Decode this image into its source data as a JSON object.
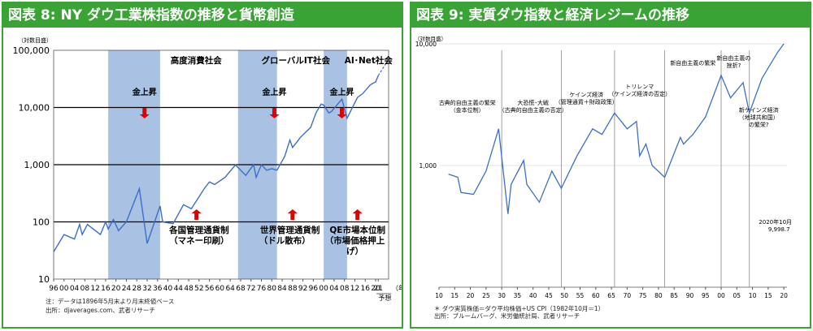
{
  "left": {
    "title": "図表 8: NY ダウ工業株指数の推移と貨幣創造",
    "note1": "注：データは1896年5月末より月末終値ベース",
    "note2": "出所：djaverages.com、武者リサーチ",
    "forecast_label": "予想",
    "colors": {
      "header": "#3aa335",
      "line": "#3b6fc4",
      "band": "#a9c2e3",
      "arrow": "#e00000"
    },
    "chart_data": {
      "type": "line",
      "yscale": "log",
      "ylabel": "（対数目盛）",
      "xlabel": "（年）",
      "ylim": [
        10,
        100000
      ],
      "xlim": [
        1896,
        2025
      ],
      "yticks": [
        "10",
        "100",
        "1,000",
        "10,000",
        "100,000"
      ],
      "xticks": [
        "96",
        "00",
        "04",
        "08",
        "12",
        "16",
        "20",
        "24",
        "28",
        "32",
        "36",
        "40",
        "44",
        "48",
        "52",
        "56",
        "60",
        "64",
        "68",
        "72",
        "76",
        "80",
        "84",
        "88",
        "92",
        "96",
        "00",
        "04",
        "08",
        "12",
        "16",
        "20",
        "21"
      ],
      "bands": [
        [
          1917,
          1937
        ],
        [
          1967,
          1982
        ],
        [
          2000,
          2009
        ]
      ],
      "eras": [
        "高度消費社会",
        "グローバルIT社会",
        "AI･Net社会"
      ],
      "gold": [
        "金上昇",
        "金上昇",
        "金上昇"
      ],
      "money": [
        "各国管理通貨制",
        "（マネー印刷）",
        "世界管理通貨制",
        "（ドル散布）",
        "QE市場本位制",
        "（市場価格押上",
        "げ）"
      ],
      "series": [
        {
          "x": [
            1896,
            1900,
            1904,
            1906,
            1907,
            1909,
            1914,
            1916,
            1917,
            1919,
            1921,
            1924,
            1929,
            1932,
            1937,
            1938,
            1942,
            1946,
            1949,
            1954,
            1956,
            1958,
            1962,
            1966,
            1970,
            1973,
            1974,
            1976,
            1978,
            1980,
            1982,
            1985,
            1987,
            1988,
            1990,
            1991,
            1995,
            1997,
            1999,
            2000,
            2002,
            2003,
            2007,
            2009,
            2013,
            2015,
            2018,
            2020,
            2021
          ],
          "y": [
            30,
            60,
            50,
            90,
            60,
            90,
            60,
            100,
            75,
            110,
            70,
            100,
            380,
            42,
            190,
            100,
            93,
            200,
            170,
            380,
            500,
            450,
            600,
            990,
            650,
            1000,
            600,
            1000,
            800,
            850,
            800,
            1400,
            2700,
            2000,
            2600,
            3000,
            4500,
            8000,
            11500,
            11000,
            8000,
            8500,
            14000,
            6500,
            15000,
            17500,
            25000,
            28000,
            36000
          ]
        }
      ]
    }
  },
  "right": {
    "title": "図表 9: 実質ダウ指数と経済レジームの推移",
    "note1": "＊ ダウ実質株価＝ダウ平均株価÷US CPI（1982年10月＝1）",
    "note2": "出所：ブルームバーグ、米労働統計局、武者リサーチ",
    "colors": {
      "line": "#3b6fc4",
      "divider": "#888888"
    },
    "chart_data": {
      "type": "line",
      "yscale": "log",
      "ylabel": "（対数目盛）",
      "ylim": [
        100,
        10000
      ],
      "xlim": [
        1910,
        2021
      ],
      "yticks": [
        "1,000",
        "10,000"
      ],
      "xticks": [
        "10",
        "15",
        "20",
        "25",
        "30",
        "35",
        "40",
        "45",
        "50",
        "55",
        "60",
        "65",
        "70",
        "75",
        "80",
        "85",
        "90",
        "95",
        "00",
        "05",
        "10",
        "15",
        "20"
      ],
      "regimes": [
        {
          "lines": [
            "古典的自由主義の繁栄",
            "（金本位制）"
          ]
        },
        {
          "lines": [
            "大恐慌･大戦",
            "（古典的自由主義の否定）"
          ]
        },
        {
          "lines": [
            "ケインズ経済",
            "（管理通貨＋財政政策）"
          ]
        },
        {
          "lines": [
            "トリレンマ",
            "（ケインズ経済の否定）"
          ]
        },
        {
          "lines": [
            "新自由主義の繁栄"
          ]
        },
        {
          "lines": [
            "新自由主義の",
            "挫折?"
          ]
        },
        {
          "lines": [
            "新ケインズ経済",
            "（地球共和国）",
            "の繁栄?"
          ]
        }
      ],
      "dividers": [
        1930,
        1949,
        1966,
        1982,
        2000,
        2009
      ],
      "latest": {
        "label": "2020年10月",
        "value": "9,998.7"
      },
      "series": [
        {
          "x": [
            1913,
            1916,
            1917,
            1921,
            1925,
            1929,
            1932,
            1933,
            1937,
            1938,
            1942,
            1946,
            1949,
            1954,
            1959,
            1962,
            1966,
            1970,
            1973,
            1974,
            1976,
            1978,
            1982,
            1987,
            1988,
            1990,
            1991,
            1995,
            2000,
            2003,
            2007,
            2009,
            2013,
            2018,
            2020
          ],
          "y": [
            850,
            800,
            600,
            580,
            900,
            2000,
            400,
            700,
            1100,
            700,
            500,
            900,
            650,
            1200,
            2000,
            1800,
            2700,
            2000,
            2300,
            1200,
            1500,
            1000,
            800,
            1700,
            1500,
            1700,
            1800,
            2500,
            5500,
            3600,
            4800,
            2700,
            5200,
            8500,
            9998.7
          ]
        }
      ]
    }
  }
}
